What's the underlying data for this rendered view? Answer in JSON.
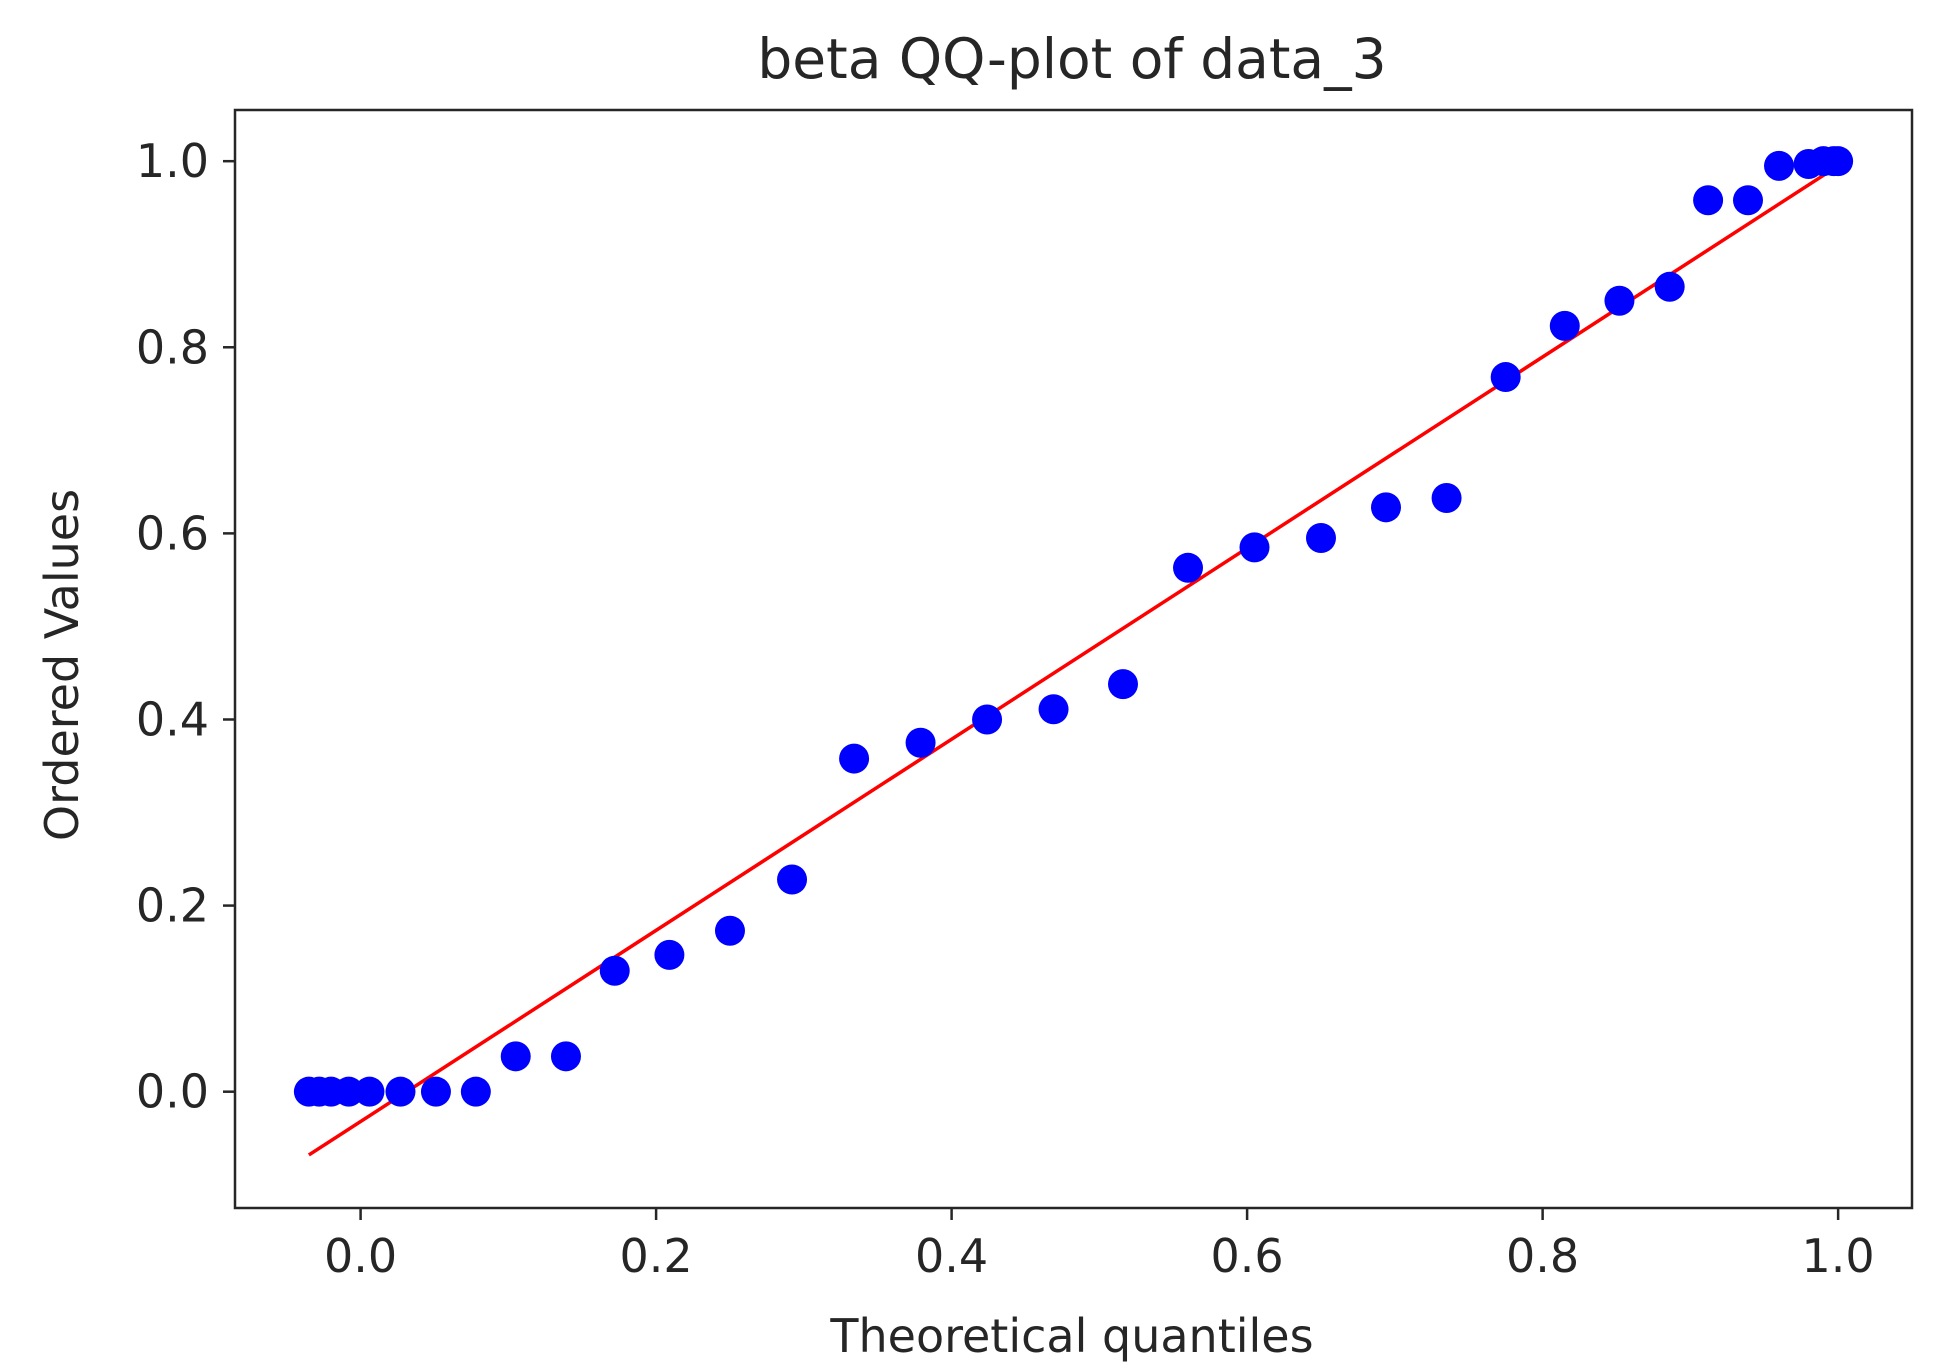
{
  "chart_data": {
    "type": "scatter",
    "title": "beta QQ-plot of data_3",
    "xlabel": "Theoretical quantiles",
    "ylabel": "Ordered Values",
    "xlim": [
      -0.085,
      1.05
    ],
    "ylim": [
      -0.125,
      1.055
    ],
    "xticks": [
      0.0,
      0.2,
      0.4,
      0.6,
      0.8,
      1.0
    ],
    "yticks": [
      0.0,
      0.2,
      0.4,
      0.6,
      0.8,
      1.0
    ],
    "xtick_labels": [
      "0.0",
      "0.2",
      "0.4",
      "0.6",
      "0.8",
      "1.0"
    ],
    "ytick_labels": [
      "0.0",
      "0.2",
      "0.4",
      "0.6",
      "0.8",
      "1.0"
    ],
    "grid": false,
    "legend": "none",
    "points_color": "#0000ff",
    "line_color": "#ff0000",
    "points": {
      "x": [
        -0.035,
        -0.028,
        -0.02,
        -0.008,
        0.006,
        0.027,
        0.051,
        0.078,
        0.105,
        0.139,
        0.172,
        0.209,
        0.25,
        0.292,
        0.334,
        0.379,
        0.424,
        0.469,
        0.516,
        0.56,
        0.605,
        0.65,
        0.694,
        0.735,
        0.775,
        0.815,
        0.852,
        0.886,
        0.912,
        0.939,
        0.96,
        0.98,
        0.99,
        0.997,
        1.0
      ],
      "y": [
        0.0,
        0.0,
        0.0,
        0.0,
        0.0,
        0.0,
        0.0,
        0.0,
        0.038,
        0.038,
        0.13,
        0.147,
        0.173,
        0.228,
        0.358,
        0.375,
        0.4,
        0.411,
        0.438,
        0.563,
        0.585,
        0.595,
        0.628,
        0.638,
        0.768,
        0.823,
        0.85,
        0.865,
        0.958,
        0.958,
        0.995,
        0.997,
        1.0,
        1.0,
        1.0
      ]
    },
    "fit_line": {
      "x": [
        -0.035,
        1.0
      ],
      "y": [
        -0.068,
        0.995
      ]
    }
  }
}
